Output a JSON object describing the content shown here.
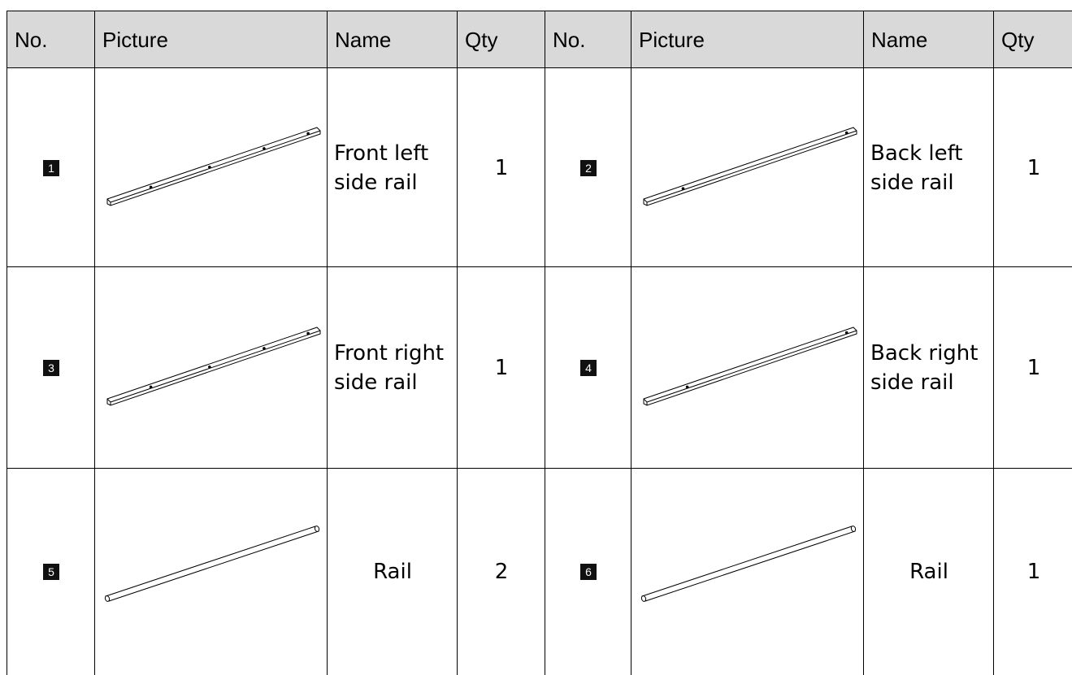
{
  "header": [
    "No.",
    "Picture",
    "Name",
    "Qty",
    "No.",
    "Picture",
    "Name",
    "Qty"
  ],
  "rows": [
    [
      {
        "no": "1",
        "name": [
          "Front left",
          "side rail"
        ],
        "qty": "1"
      },
      {
        "no": "2",
        "name": [
          "Back left",
          "side rail"
        ],
        "qty": "1"
      }
    ],
    [
      {
        "no": "3",
        "name": [
          "Front right",
          "side rail"
        ],
        "qty": "1"
      },
      {
        "no": "4",
        "name": [
          "Back right",
          "side rail"
        ],
        "qty": "1"
      }
    ],
    [
      {
        "no": "5",
        "name": [
          "Rail"
        ],
        "qty": "2"
      },
      {
        "no": "6",
        "name": [
          "Rail"
        ],
        "qty": "1"
      }
    ]
  ]
}
